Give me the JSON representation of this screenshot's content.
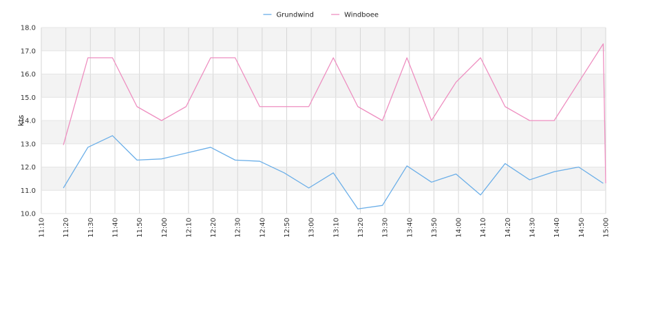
{
  "chart_data": {
    "type": "line",
    "title": "",
    "xlabel": "",
    "ylabel": "kts",
    "ylim": [
      10.0,
      18.0
    ],
    "y_ticks": [
      "10.0",
      "11.0",
      "12.0",
      "13.0",
      "14.0",
      "15.0",
      "16.0",
      "17.0",
      "18.0"
    ],
    "x_ticks": [
      "11:10",
      "11:20",
      "11:30",
      "11:40",
      "11:50",
      "12:00",
      "12:10",
      "12:20",
      "12:30",
      "12:40",
      "12:50",
      "13:00",
      "13:10",
      "13:20",
      "13:30",
      "13:40",
      "13:50",
      "14:00",
      "14:10",
      "14:20",
      "14:30",
      "14:40",
      "14:50",
      "15:00"
    ],
    "xlim": [
      "11:10",
      "15:00"
    ],
    "grid": true,
    "legend_position": "top-center",
    "series": [
      {
        "name": "Grundwind",
        "color": "#6aaee8",
        "x": [
          "11:19",
          "11:29",
          "11:39",
          "11:49",
          "11:59",
          "12:09",
          "12:19",
          "12:29",
          "12:39",
          "12:49",
          "12:59",
          "13:09",
          "13:19",
          "13:29",
          "13:39",
          "13:49",
          "13:59",
          "14:09",
          "14:19",
          "14:29",
          "14:39",
          "14:49",
          "14:59"
        ],
        "values": [
          11.1,
          12.85,
          13.35,
          12.3,
          12.35,
          12.6,
          12.85,
          12.3,
          12.25,
          11.75,
          11.1,
          11.75,
          10.2,
          10.35,
          12.05,
          11.35,
          11.7,
          10.8,
          12.15,
          11.45,
          11.8,
          12.0,
          11.3
        ]
      },
      {
        "name": "Windboee",
        "color": "#ee8ec0",
        "x": [
          "11:19",
          "11:29",
          "11:39",
          "11:49",
          "11:59",
          "12:09",
          "12:19",
          "12:29",
          "12:39",
          "12:49",
          "12:59",
          "13:09",
          "13:19",
          "13:29",
          "13:39",
          "13:49",
          "13:59",
          "14:09",
          "14:19",
          "14:29",
          "14:39",
          "14:49",
          "14:59",
          "15:00"
        ],
        "values": [
          12.95,
          16.7,
          16.7,
          14.6,
          14.0,
          14.6,
          16.7,
          16.7,
          14.6,
          14.6,
          14.6,
          16.7,
          14.6,
          14.0,
          16.7,
          14.0,
          15.65,
          16.7,
          14.6,
          14.0,
          14.0,
          15.65,
          17.3,
          11.3
        ]
      }
    ]
  }
}
